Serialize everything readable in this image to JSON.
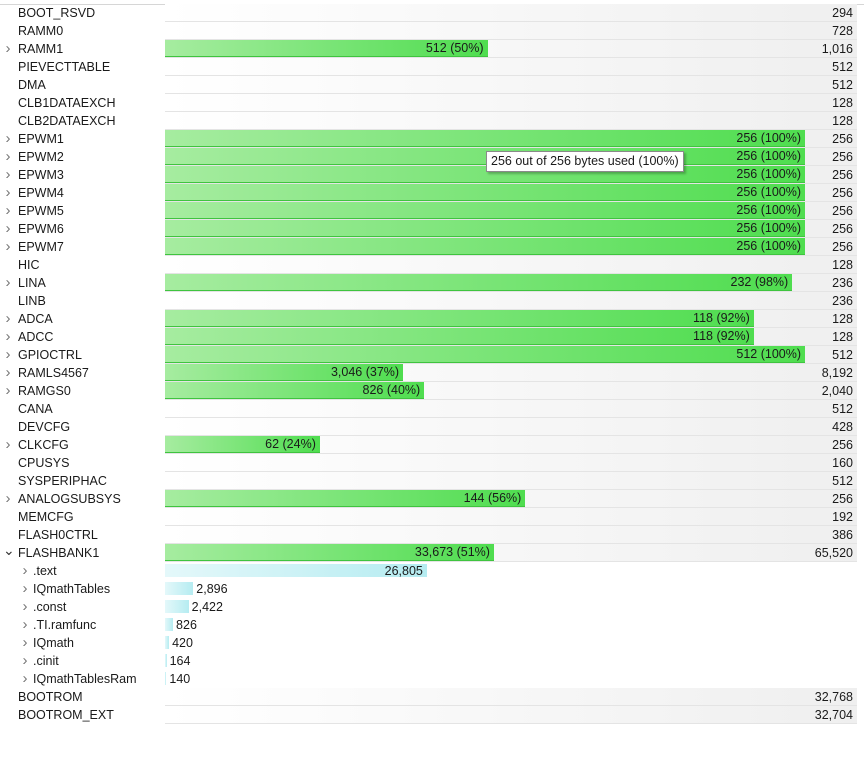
{
  "rows": [
    {
      "name": "BOOT_RSVD",
      "total": "294"
    },
    {
      "name": "RAMM0",
      "total": "728"
    },
    {
      "name": "RAMM1",
      "total": "1,016",
      "expandable": true,
      "used": "512 (50%)",
      "pct": 50.4
    },
    {
      "name": "PIEVECTTABLE",
      "total": "512"
    },
    {
      "name": "DMA",
      "total": "512"
    },
    {
      "name": "CLB1DATAEXCH",
      "total": "128"
    },
    {
      "name": "CLB2DATAEXCH",
      "total": "128"
    },
    {
      "name": "EPWM1",
      "total": "256",
      "expandable": true,
      "used": "256 (100%)",
      "pct": 100
    },
    {
      "name": "EPWM2",
      "total": "256",
      "expandable": true,
      "used": "256 (100%)",
      "pct": 100
    },
    {
      "name": "EPWM3",
      "total": "256",
      "expandable": true,
      "used": "256 (100%)",
      "pct": 100
    },
    {
      "name": "EPWM4",
      "total": "256",
      "expandable": true,
      "used": "256 (100%)",
      "pct": 100
    },
    {
      "name": "EPWM5",
      "total": "256",
      "expandable": true,
      "used": "256 (100%)",
      "pct": 100
    },
    {
      "name": "EPWM6",
      "total": "256",
      "expandable": true,
      "used": "256 (100%)",
      "pct": 100
    },
    {
      "name": "EPWM7",
      "total": "256",
      "expandable": true,
      "used": "256 (100%)",
      "pct": 100
    },
    {
      "name": "HIC",
      "total": "128"
    },
    {
      "name": "LINA",
      "total": "236",
      "expandable": true,
      "used": "232 (98%)",
      "pct": 98
    },
    {
      "name": "LINB",
      "total": "236"
    },
    {
      "name": "ADCA",
      "total": "128",
      "expandable": true,
      "used": "118 (92%)",
      "pct": 92
    },
    {
      "name": "ADCC",
      "total": "128",
      "expandable": true,
      "used": "118 (92%)",
      "pct": 92
    },
    {
      "name": "GPIOCTRL",
      "total": "512",
      "expandable": true,
      "used": "512 (100%)",
      "pct": 100
    },
    {
      "name": "RAMLS4567",
      "total": "8,192",
      "expandable": true,
      "used": "3,046 (37%)",
      "pct": 37.2
    },
    {
      "name": "RAMGS0",
      "total": "2,040",
      "expandable": true,
      "used": "826 (40%)",
      "pct": 40.5
    },
    {
      "name": "CANA",
      "total": "512"
    },
    {
      "name": "DEVCFG",
      "total": "428"
    },
    {
      "name": "CLKCFG",
      "total": "256",
      "expandable": true,
      "used": "62 (24%)",
      "pct": 24.2
    },
    {
      "name": "CPUSYS",
      "total": "160"
    },
    {
      "name": "SYSPERIPHAC",
      "total": "512"
    },
    {
      "name": "ANALOGSUBSYS",
      "total": "256",
      "expandable": true,
      "used": "144 (56%)",
      "pct": 56.3
    },
    {
      "name": "MEMCFG",
      "total": "192"
    },
    {
      "name": "FLASH0CTRL",
      "total": "386"
    },
    {
      "name": "FLASHBANK1",
      "total": "65,520",
      "expandable": true,
      "expanded": true,
      "used": "33,673 (51%)",
      "pct": 51.4,
      "children": [
        {
          "name": ".text",
          "value": "26,805",
          "frac": 0.796
        },
        {
          "name": "IQmathTables",
          "value": "2,896",
          "frac": 0.086
        },
        {
          "name": ".const",
          "value": "2,422",
          "frac": 0.0719
        },
        {
          "name": ".TI.ramfunc",
          "value": "826",
          "frac": 0.0245
        },
        {
          "name": "IQmath",
          "value": "420",
          "frac": 0.0125
        },
        {
          "name": ".cinit",
          "value": "164",
          "frac": 0.0049
        },
        {
          "name": "IQmathTablesRam",
          "value": "140",
          "frac": 0.0042
        }
      ]
    },
    {
      "name": "BOOTROM",
      "total": "32,768"
    },
    {
      "name": "BOOTROM_EXT",
      "total": "32,704"
    }
  ],
  "tooltip": "256 out of 256 bytes used (100%)",
  "icons": {
    "collapsed": "chevron-right-icon",
    "expanded": "chevron-down-icon"
  },
  "colors": {
    "used_bar": "#4fdd4f",
    "section_bar": "#b5ecf1"
  }
}
